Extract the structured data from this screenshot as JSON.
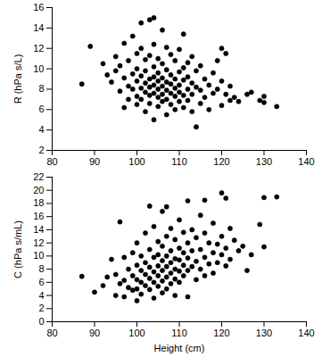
{
  "chart_data": [
    {
      "type": "scatter",
      "ylabel": "R (hPa s/L)",
      "color": "#000000",
      "marker": "circle",
      "xlim": [
        80,
        140
      ],
      "xticks": [
        80,
        90,
        100,
        110,
        120,
        130,
        140
      ],
      "ylim": [
        2,
        16
      ],
      "yticks": [
        2,
        4,
        6,
        8,
        10,
        12,
        14,
        16
      ],
      "x": [
        87,
        89,
        92,
        93,
        94,
        95,
        95,
        96,
        96,
        97,
        97,
        97,
        98,
        98,
        98,
        99,
        99,
        99,
        100,
        100,
        100,
        100,
        100,
        101,
        101,
        101,
        101,
        101,
        102,
        102,
        102,
        102,
        102,
        103,
        103,
        103,
        103,
        103,
        103,
        104,
        104,
        104,
        104,
        104,
        104,
        104,
        105,
        105,
        105,
        105,
        105,
        105,
        106,
        106,
        106,
        106,
        106,
        106,
        107,
        107,
        107,
        107,
        107,
        107,
        108,
        108,
        108,
        108,
        108,
        109,
        109,
        109,
        109,
        109,
        110,
        110,
        110,
        110,
        110,
        111,
        111,
        111,
        111,
        111,
        112,
        112,
        112,
        112,
        113,
        113,
        113,
        113,
        114,
        114,
        114,
        115,
        115,
        115,
        116,
        116,
        117,
        117,
        118,
        118,
        119,
        119,
        120,
        120,
        120,
        121,
        121,
        122,
        122,
        123,
        124,
        126,
        127,
        129,
        130,
        130,
        133
      ],
      "values": [
        8.5,
        12.2,
        10.5,
        9.4,
        8.7,
        11.2,
        9.8,
        10.3,
        7.8,
        12.5,
        9.1,
        6.2,
        10.8,
        8.3,
        7.0,
        13.2,
        9.5,
        8.0,
        11.5,
        10.0,
        8.8,
        7.3,
        6.5,
        14.5,
        12.0,
        9.3,
        8.1,
        7.0,
        10.9,
        9.8,
        8.6,
        7.7,
        5.8,
        14.8,
        11.3,
        9.0,
        8.2,
        7.4,
        6.6,
        15.0,
        12.4,
        10.2,
        9.2,
        8.4,
        7.6,
        5.0,
        11.0,
        9.6,
        8.8,
        8.0,
        7.2,
        6.3,
        13.8,
        10.5,
        9.1,
        8.3,
        7.5,
        6.8,
        12.1,
        9.9,
        8.7,
        7.9,
        7.0,
        5.5,
        11.4,
        9.4,
        8.5,
        7.6,
        6.5,
        10.8,
        9.0,
        8.1,
        7.3,
        6.0,
        11.9,
        9.7,
        8.4,
        7.7,
        6.8,
        13.4,
        10.1,
        8.9,
        7.4,
        6.2,
        10.6,
        9.2,
        8.0,
        6.9,
        11.2,
        8.6,
        7.5,
        5.8,
        9.8,
        8.2,
        4.3,
        10.3,
        7.9,
        6.6,
        9.0,
        7.2,
        8.4,
        6.0,
        9.6,
        7.6,
        10.8,
        8.0,
        12.0,
        8.8,
        6.4,
        11.5,
        7.5,
        8.3,
        6.9,
        7.2,
        6.8,
        7.5,
        7.7,
        6.9,
        7.3,
        6.7,
        6.3
      ]
    },
    {
      "type": "scatter",
      "ylabel": "C (hPa s/mL)",
      "xlabel": "Height (cm)",
      "color": "#000000",
      "marker": "circle",
      "xlim": [
        80,
        140
      ],
      "xticks": [
        80,
        90,
        100,
        110,
        120,
        130,
        140
      ],
      "ylim": [
        0,
        22
      ],
      "yticks": [
        0,
        2,
        4,
        6,
        8,
        10,
        12,
        14,
        16,
        18,
        20,
        22
      ],
      "x": [
        87,
        90,
        92,
        93,
        94,
        95,
        95,
        96,
        96,
        97,
        97,
        97,
        98,
        98,
        99,
        99,
        99,
        100,
        100,
        100,
        100,
        100,
        101,
        101,
        101,
        101,
        102,
        102,
        102,
        102,
        103,
        103,
        103,
        103,
        103,
        104,
        104,
        104,
        104,
        104,
        105,
        105,
        105,
        105,
        105,
        106,
        106,
        106,
        106,
        106,
        106,
        107,
        107,
        107,
        107,
        107,
        107,
        108,
        108,
        108,
        108,
        108,
        109,
        109,
        109,
        109,
        109,
        110,
        110,
        110,
        110,
        110,
        111,
        111,
        111,
        111,
        112,
        112,
        112,
        112,
        112,
        113,
        113,
        113,
        114,
        114,
        114,
        115,
        115,
        115,
        116,
        116,
        116,
        116,
        117,
        117,
        118,
        118,
        118,
        119,
        119,
        120,
        120,
        120,
        121,
        121,
        121,
        122,
        122,
        123,
        124,
        125,
        126,
        127,
        129,
        130,
        130,
        133
      ],
      "values": [
        6.9,
        4.5,
        5.5,
        6.8,
        9.5,
        4.0,
        7.2,
        15.2,
        5.8,
        9.8,
        6.3,
        3.8,
        8.0,
        5.2,
        10.5,
        7.0,
        4.8,
        12.0,
        8.6,
        6.4,
        5.0,
        3.2,
        10.0,
        7.8,
        6.0,
        4.2,
        13.5,
        9.0,
        7.2,
        5.5,
        17.6,
        11.0,
        8.3,
        6.6,
        4.9,
        14.5,
        9.8,
        7.6,
        6.0,
        3.6,
        12.2,
        10.2,
        8.5,
        7.0,
        5.4,
        16.8,
        11.5,
        9.3,
        7.8,
        6.2,
        4.4,
        17.5,
        13.0,
        10.0,
        8.4,
        6.8,
        5.0,
        14.2,
        10.8,
        9.0,
        7.4,
        5.8,
        12.5,
        9.6,
        8.0,
        6.5,
        4.0,
        15.5,
        11.2,
        9.4,
        7.7,
        6.0,
        13.6,
        10.5,
        8.6,
        7.0,
        18.4,
        12.0,
        9.7,
        7.8,
        3.8,
        14.0,
        10.8,
        8.4,
        12.8,
        9.2,
        6.4,
        16.2,
        11.0,
        8.0,
        18.5,
        13.5,
        9.8,
        7.0,
        12.0,
        8.8,
        15.0,
        10.5,
        7.4,
        11.8,
        9.0,
        19.6,
        13.0,
        10.2,
        18.8,
        11.2,
        8.5,
        14.2,
        9.5,
        12.4,
        10.8,
        11.5,
        7.8,
        10.2,
        14.8,
        18.9,
        11.4,
        19.0
      ]
    }
  ]
}
